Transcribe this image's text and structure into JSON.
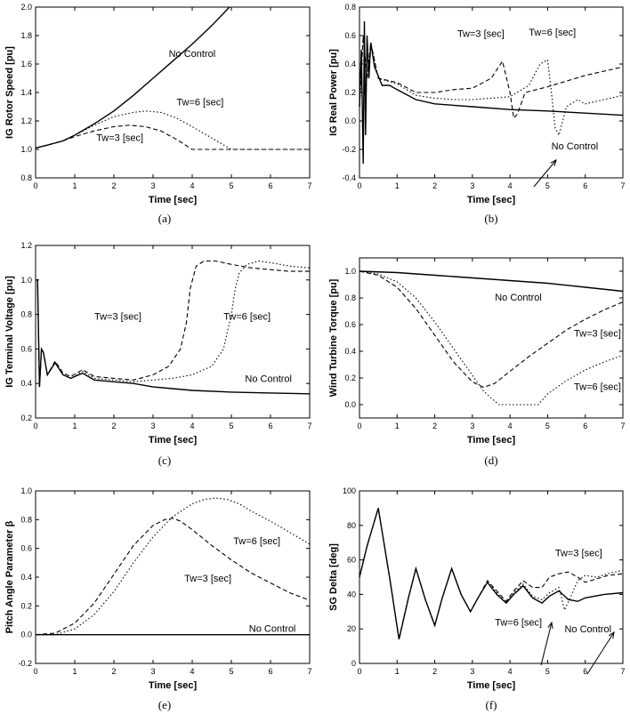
{
  "chart_data": [
    {
      "type": "line",
      "caption": "(a)",
      "xlabel": "Time [sec]",
      "ylabel": "IG Rotor Speed [pu]",
      "xlim": [
        0,
        7
      ],
      "ylim": [
        0.8,
        2.0
      ],
      "xticks": [
        0,
        1,
        2,
        3,
        4,
        5,
        6,
        7
      ],
      "yticks": [
        0.8,
        1.0,
        1.2,
        1.4,
        1.6,
        1.8,
        2.0
      ],
      "tick_format": {
        "x": "int",
        "y": "1dp"
      },
      "grid": false,
      "series": [
        {
          "name": "No Control",
          "style": "solid",
          "x": [
            0,
            0.3,
            0.7,
            1,
            1.5,
            2,
            2.5,
            3,
            3.5,
            4,
            4.5,
            4.95
          ],
          "y": [
            1.01,
            1.03,
            1.06,
            1.1,
            1.18,
            1.27,
            1.38,
            1.5,
            1.62,
            1.74,
            1.87,
            2.0
          ]
        },
        {
          "name": "Tw=6 [sec]",
          "style": "dotted",
          "x": [
            0,
            0.3,
            0.7,
            1,
            1.5,
            2,
            2.5,
            2.8,
            3.2,
            3.6,
            4,
            4.5,
            5,
            5.5,
            6,
            7
          ],
          "y": [
            1.01,
            1.03,
            1.06,
            1.1,
            1.17,
            1.23,
            1.26,
            1.27,
            1.26,
            1.22,
            1.16,
            1.08,
            1.0,
            1.0,
            1.0,
            1.0
          ]
        },
        {
          "name": "Tw=3 [sec]",
          "style": "dashed",
          "x": [
            0,
            0.3,
            0.7,
            1,
            1.5,
            2,
            2.4,
            2.8,
            3.2,
            3.6,
            4,
            4.5,
            5,
            6,
            7
          ],
          "y": [
            1.01,
            1.03,
            1.06,
            1.09,
            1.13,
            1.16,
            1.17,
            1.16,
            1.13,
            1.07,
            1.0,
            1.0,
            1.0,
            1.0,
            1.0
          ]
        }
      ],
      "annotations": [
        {
          "text": "No Control",
          "x": 3.4,
          "y": 1.65
        },
        {
          "text": "Tw=6 [sec]",
          "x": 3.6,
          "y": 1.31
        },
        {
          "text": "Tw=3 [sec]",
          "x": 1.55,
          "y": 1.06
        }
      ]
    },
    {
      "type": "line",
      "caption": "(b)",
      "xlabel": "Time [sec]",
      "ylabel": "IG Real Power [pu]",
      "xlim": [
        0,
        7
      ],
      "ylim": [
        -0.4,
        0.8
      ],
      "xticks": [
        0,
        1,
        2,
        3,
        4,
        5,
        6,
        7
      ],
      "yticks": [
        -0.4,
        -0.2,
        0.0,
        0.2,
        0.4,
        0.6,
        0.8
      ],
      "tick_format": {
        "x": "int",
        "y": "1dp"
      },
      "grid": false,
      "series": [
        {
          "name": "No Control",
          "style": "solid",
          "x": [
            0,
            0.05,
            0.1,
            0.13,
            0.16,
            0.2,
            0.25,
            0.3,
            0.4,
            0.6,
            0.8,
            1,
            1.5,
            2,
            3,
            4,
            5,
            6,
            7
          ],
          "y": [
            0.1,
            0.5,
            -0.3,
            0.7,
            -0.1,
            0.6,
            0.3,
            0.55,
            0.38,
            0.25,
            0.25,
            0.22,
            0.15,
            0.12,
            0.1,
            0.08,
            0.07,
            0.055,
            0.04
          ]
        },
        {
          "name": "Tw=3 [sec]",
          "style": "dashed",
          "x": [
            0,
            0.1,
            0.2,
            0.3,
            0.5,
            1,
            1.5,
            2,
            2.5,
            3,
            3.5,
            3.8,
            4,
            4.1,
            4.2,
            4.4,
            4.7,
            5,
            5.5,
            6,
            6.5,
            7
          ],
          "y": [
            0.1,
            0.6,
            0.3,
            0.55,
            0.3,
            0.27,
            0.2,
            0.2,
            0.22,
            0.23,
            0.3,
            0.42,
            0.2,
            0.02,
            0.05,
            0.2,
            0.22,
            0.24,
            0.28,
            0.32,
            0.35,
            0.38
          ]
        },
        {
          "name": "Tw=6 [sec]",
          "style": "dotted",
          "x": [
            0,
            0.1,
            0.2,
            0.3,
            0.5,
            1,
            1.5,
            2,
            2.5,
            3,
            3.5,
            4,
            4.5,
            4.8,
            5,
            5.1,
            5.2,
            5.3,
            5.5,
            5.8,
            6,
            6.5,
            7
          ],
          "y": [
            0.1,
            0.6,
            0.3,
            0.55,
            0.3,
            0.26,
            0.18,
            0.16,
            0.15,
            0.15,
            0.16,
            0.17,
            0.25,
            0.4,
            0.43,
            0.2,
            -0.05,
            -0.1,
            0.1,
            0.15,
            0.12,
            0.15,
            0.18
          ]
        }
      ],
      "annotations": [
        {
          "text": "Tw=3 [sec]",
          "x": 2.6,
          "y": 0.59
        },
        {
          "text": "Tw=6 [sec]",
          "x": 4.5,
          "y": 0.6
        },
        {
          "text": "No Control",
          "x": 5.1,
          "y": -0.2
        }
      ]
    },
    {
      "type": "line",
      "caption": "(c)",
      "xlabel": "Time [sec]",
      "ylabel": "IG Terminal Voltage [pu]",
      "xlim": [
        0,
        7
      ],
      "ylim": [
        0.2,
        1.2
      ],
      "xticks": [
        0,
        1,
        2,
        3,
        4,
        5,
        6,
        7
      ],
      "yticks": [
        0.2,
        0.4,
        0.6,
        0.8,
        1.0,
        1.2
      ],
      "tick_format": {
        "x": "int",
        "y": "1dp"
      },
      "grid": false,
      "series": [
        {
          "name": "No Control",
          "style": "solid",
          "x": [
            0,
            0.05,
            0.1,
            0.15,
            0.2,
            0.3,
            0.5,
            0.7,
            0.9,
            1.2,
            1.5,
            2,
            2.5,
            3,
            3.5,
            4,
            5,
            6,
            7
          ],
          "y": [
            1.0,
            1.0,
            0.38,
            0.6,
            0.58,
            0.45,
            0.52,
            0.45,
            0.43,
            0.46,
            0.42,
            0.41,
            0.4,
            0.38,
            0.37,
            0.36,
            0.35,
            0.345,
            0.34
          ]
        },
        {
          "name": "Tw=3 [sec]",
          "style": "dashed",
          "x": [
            0,
            0.05,
            0.1,
            0.15,
            0.2,
            0.3,
            0.5,
            0.7,
            0.9,
            1.2,
            1.5,
            2,
            2.5,
            3,
            3.4,
            3.7,
            3.85,
            3.95,
            4.1,
            4.3,
            4.6,
            5,
            5.5,
            6,
            6.5,
            7
          ],
          "y": [
            1.0,
            1.0,
            0.38,
            0.6,
            0.58,
            0.45,
            0.53,
            0.46,
            0.44,
            0.48,
            0.44,
            0.43,
            0.42,
            0.45,
            0.5,
            0.6,
            0.75,
            0.95,
            1.08,
            1.11,
            1.11,
            1.09,
            1.07,
            1.06,
            1.05,
            1.05
          ]
        },
        {
          "name": "Tw=6 [sec]",
          "style": "dotted",
          "x": [
            0,
            0.05,
            0.1,
            0.15,
            0.2,
            0.3,
            0.5,
            0.7,
            0.9,
            1.2,
            1.5,
            2,
            2.5,
            3,
            3.5,
            4,
            4.5,
            4.8,
            5.0,
            5.1,
            5.2,
            5.4,
            5.7,
            6,
            6.5,
            7
          ],
          "y": [
            1.0,
            1.0,
            0.38,
            0.6,
            0.58,
            0.45,
            0.52,
            0.45,
            0.43,
            0.47,
            0.43,
            0.42,
            0.41,
            0.42,
            0.43,
            0.45,
            0.5,
            0.6,
            0.8,
            0.95,
            1.04,
            1.09,
            1.11,
            1.1,
            1.08,
            1.07
          ]
        }
      ],
      "annotations": [
        {
          "text": "Tw=3 [sec]",
          "x": 1.5,
          "y": 0.77
        },
        {
          "text": "Tw=6 [sec]",
          "x": 4.8,
          "y": 0.77
        },
        {
          "text": "No Control",
          "x": 5.35,
          "y": 0.41
        }
      ]
    },
    {
      "type": "line",
      "caption": "(d)",
      "xlabel": "Time [sec]",
      "ylabel": "Wind Turbine Torque [pu]",
      "xlim": [
        0,
        7
      ],
      "ylim": [
        -0.1,
        1.1
      ],
      "xticks": [
        0,
        1,
        2,
        3,
        4,
        5,
        6,
        7
      ],
      "yticks": [
        0.0,
        0.2,
        0.4,
        0.6,
        0.8,
        1.0
      ],
      "tick_format": {
        "x": "int",
        "y": "1dp"
      },
      "grid": false,
      "series": [
        {
          "name": "No Control",
          "style": "solid",
          "x": [
            0,
            1,
            2,
            3,
            4,
            5,
            6,
            7
          ],
          "y": [
            1.0,
            0.99,
            0.97,
            0.95,
            0.93,
            0.91,
            0.88,
            0.85
          ]
        },
        {
          "name": "Tw=3 [sec]",
          "style": "dashed",
          "x": [
            0,
            0.5,
            1,
            1.5,
            2,
            2.5,
            3,
            3.3,
            3.6,
            4,
            4.5,
            5,
            5.5,
            6,
            6.5,
            7
          ],
          "y": [
            1.0,
            0.97,
            0.88,
            0.72,
            0.52,
            0.32,
            0.17,
            0.13,
            0.16,
            0.25,
            0.36,
            0.46,
            0.56,
            0.64,
            0.71,
            0.77
          ]
        },
        {
          "name": "Tw=6 [sec]",
          "style": "dotted",
          "x": [
            0,
            0.5,
            1,
            1.5,
            2,
            2.5,
            3,
            3.3,
            3.7,
            4,
            4.5,
            4.75,
            5,
            5.5,
            6,
            6.5,
            7
          ],
          "y": [
            1.0,
            0.98,
            0.92,
            0.8,
            0.62,
            0.42,
            0.22,
            0.1,
            0.0,
            0.0,
            0.0,
            0.0,
            0.08,
            0.18,
            0.26,
            0.32,
            0.37
          ]
        }
      ],
      "annotations": [
        {
          "text": "No Control",
          "x": 3.6,
          "y": 0.78
        },
        {
          "text": "Tw=3 [sec]",
          "x": 5.7,
          "y": 0.51
        },
        {
          "text": "Tw=6 [sec]",
          "x": 5.7,
          "y": 0.11
        }
      ]
    },
    {
      "type": "line",
      "caption": "(e)",
      "xlabel": "Time [sec]",
      "ylabel": "Pitch Angle Parameter β",
      "xlim": [
        0,
        7
      ],
      "ylim": [
        -0.2,
        1.0
      ],
      "xticks": [
        0,
        1,
        2,
        3,
        4,
        5,
        6,
        7
      ],
      "yticks": [
        -0.2,
        0.0,
        0.2,
        0.4,
        0.6,
        0.8,
        1.0
      ],
      "tick_format": {
        "x": "int",
        "y": "1dp"
      },
      "grid": false,
      "series": [
        {
          "name": "No Control",
          "style": "solid",
          "x": [
            0,
            7
          ],
          "y": [
            0.0,
            0.0
          ]
        },
        {
          "name": "Tw=3 [sec]",
          "style": "dashed",
          "x": [
            0,
            0.5,
            1,
            1.5,
            2,
            2.5,
            3,
            3.3,
            3.5,
            3.7,
            4,
            4.5,
            5,
            5.5,
            6,
            6.5,
            7
          ],
          "y": [
            0.0,
            0.01,
            0.08,
            0.22,
            0.42,
            0.62,
            0.76,
            0.8,
            0.81,
            0.79,
            0.73,
            0.62,
            0.52,
            0.43,
            0.36,
            0.29,
            0.24
          ]
        },
        {
          "name": "Tw=6 [sec]",
          "style": "dotted",
          "x": [
            0,
            0.5,
            1,
            1.5,
            2,
            2.5,
            3,
            3.5,
            4,
            4.3,
            4.6,
            4.9,
            5.2,
            5.5,
            6,
            6.5,
            7
          ],
          "y": [
            0.0,
            0.0,
            0.04,
            0.14,
            0.3,
            0.5,
            0.68,
            0.82,
            0.91,
            0.94,
            0.95,
            0.94,
            0.91,
            0.86,
            0.79,
            0.71,
            0.63
          ]
        }
      ],
      "annotations": [
        {
          "text": "Tw=6 [sec]",
          "x": 5.05,
          "y": 0.63
        },
        {
          "text": "Tw=3 [sec]",
          "x": 3.8,
          "y": 0.37
        },
        {
          "text": "No Control",
          "x": 5.45,
          "y": 0.02
        }
      ]
    },
    {
      "type": "line",
      "caption": "(f)",
      "xlabel": "Time [sec]",
      "ylabel": "SG Delta [deg]",
      "xlim": [
        0,
        7
      ],
      "ylim": [
        0,
        100
      ],
      "xticks": [
        0,
        1,
        2,
        3,
        4,
        5,
        6,
        7
      ],
      "yticks": [
        0,
        20,
        40,
        60,
        80,
        100
      ],
      "tick_format": {
        "x": "int",
        "y": "int"
      },
      "grid": false,
      "series": [
        {
          "name": "No Control",
          "style": "solid",
          "x": [
            0,
            0.2,
            0.5,
            0.8,
            1.05,
            1.3,
            1.5,
            1.75,
            2.0,
            2.2,
            2.45,
            2.7,
            2.95,
            3.15,
            3.4,
            3.65,
            3.9,
            4.1,
            4.35,
            4.6,
            4.85,
            5.05,
            5.3,
            5.55,
            5.8,
            6.0,
            6.5,
            7
          ],
          "y": [
            50,
            68,
            90,
            50,
            14,
            38,
            55,
            37,
            22,
            38,
            55,
            40,
            30,
            38,
            47,
            40,
            35,
            40,
            45,
            38,
            35,
            39,
            42,
            37,
            36,
            38,
            40,
            41
          ]
        },
        {
          "name": "Tw=3 [sec]",
          "style": "dashed",
          "x": [
            0,
            0.2,
            0.5,
            0.8,
            1.05,
            1.3,
            1.5,
            1.75,
            2.0,
            2.2,
            2.45,
            2.7,
            2.95,
            3.15,
            3.4,
            3.65,
            3.9,
            4.1,
            4.35,
            4.6,
            4.85,
            5.05,
            5.3,
            5.55,
            5.8,
            6.0,
            6.3,
            6.6,
            7
          ],
          "y": [
            50,
            68,
            90,
            50,
            14,
            38,
            55,
            37,
            22,
            38,
            55,
            40,
            30,
            38,
            48,
            42,
            36,
            42,
            48,
            44,
            44,
            50,
            52,
            53,
            50,
            47,
            49,
            51,
            52
          ]
        },
        {
          "name": "Tw=6 [sec]",
          "style": "dotted",
          "x": [
            0,
            0.2,
            0.5,
            0.8,
            1.05,
            1.3,
            1.5,
            1.75,
            2.0,
            2.2,
            2.45,
            2.7,
            2.95,
            3.15,
            3.4,
            3.65,
            3.9,
            4.1,
            4.35,
            4.6,
            4.85,
            5.05,
            5.3,
            5.45,
            5.6,
            5.8,
            6.0,
            6.3,
            6.6,
            7
          ],
          "y": [
            50,
            68,
            90,
            50,
            14,
            38,
            55,
            37,
            22,
            38,
            55,
            40,
            30,
            38,
            47,
            41,
            35,
            41,
            46,
            39,
            37,
            41,
            44,
            31,
            38,
            48,
            51,
            50,
            52,
            54
          ]
        }
      ],
      "annotations": [
        {
          "text": "Tw=3 [sec]",
          "x": 5.2,
          "y": 62
        },
        {
          "text": "Tw=6 [sec]",
          "x": 3.6,
          "y": 22
        },
        {
          "text": "No Control",
          "x": 5.45,
          "y": 18
        }
      ]
    }
  ]
}
